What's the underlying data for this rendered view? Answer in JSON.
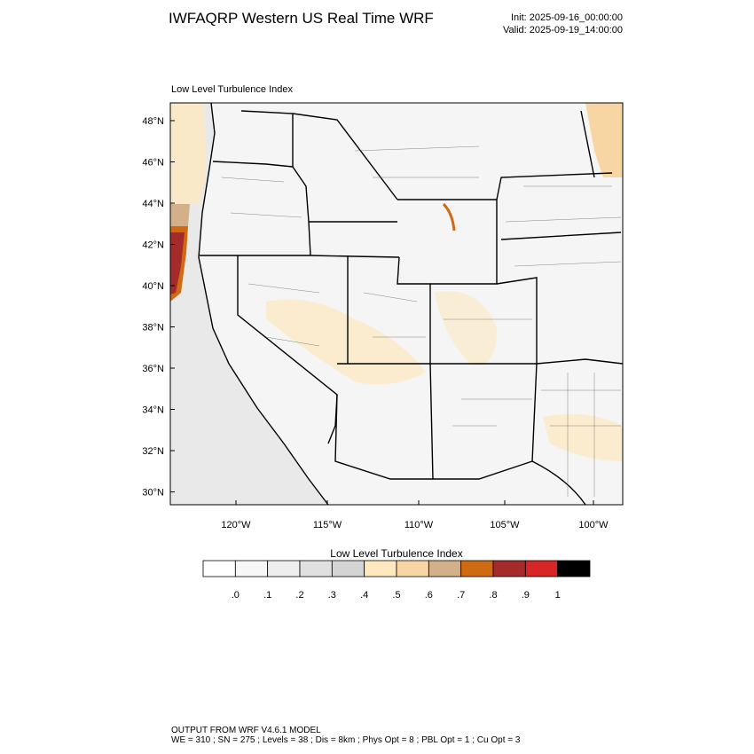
{
  "header": {
    "title": "IWFAQRP Western US Real Time WRF",
    "init": "Init: 2025-09-16_00:00:00",
    "valid": "Valid: 2025-09-19_14:00:00"
  },
  "map": {
    "title": "Low Level Turbulence Index",
    "lat_labels": [
      "48°N",
      "46°N",
      "44°N",
      "42°N",
      "40°N",
      "38°N",
      "36°N",
      "34°N",
      "32°N",
      "30°N"
    ],
    "lon_labels": [
      "120°W",
      "115°W",
      "110°W",
      "105°W",
      "100°W"
    ]
  },
  "colorbar": {
    "title": "Low Level Turbulence Index",
    "colors": [
      "#ffffff",
      "#f7f7f7",
      "#eeeeee",
      "#e0e0e0",
      "#d4d4d4",
      "#fee8bf",
      "#f8d6a4",
      "#d3b08a",
      "#cf6a12",
      "#a52b2b",
      "#d62626",
      "#000000"
    ],
    "labels": [
      ".0",
      ".1",
      ".2",
      ".3",
      ".4",
      ".5",
      ".6",
      ".7",
      ".8",
      ".9",
      "1"
    ]
  },
  "footer": {
    "line1": "OUTPUT FROM WRF V4.6.1 MODEL",
    "line2": "WE = 310 ; SN = 275 ; Levels = 38 ; Dis = 8km ; Phys Opt = 8 ; PBL Opt = 1 ; Cu Opt = 3"
  }
}
